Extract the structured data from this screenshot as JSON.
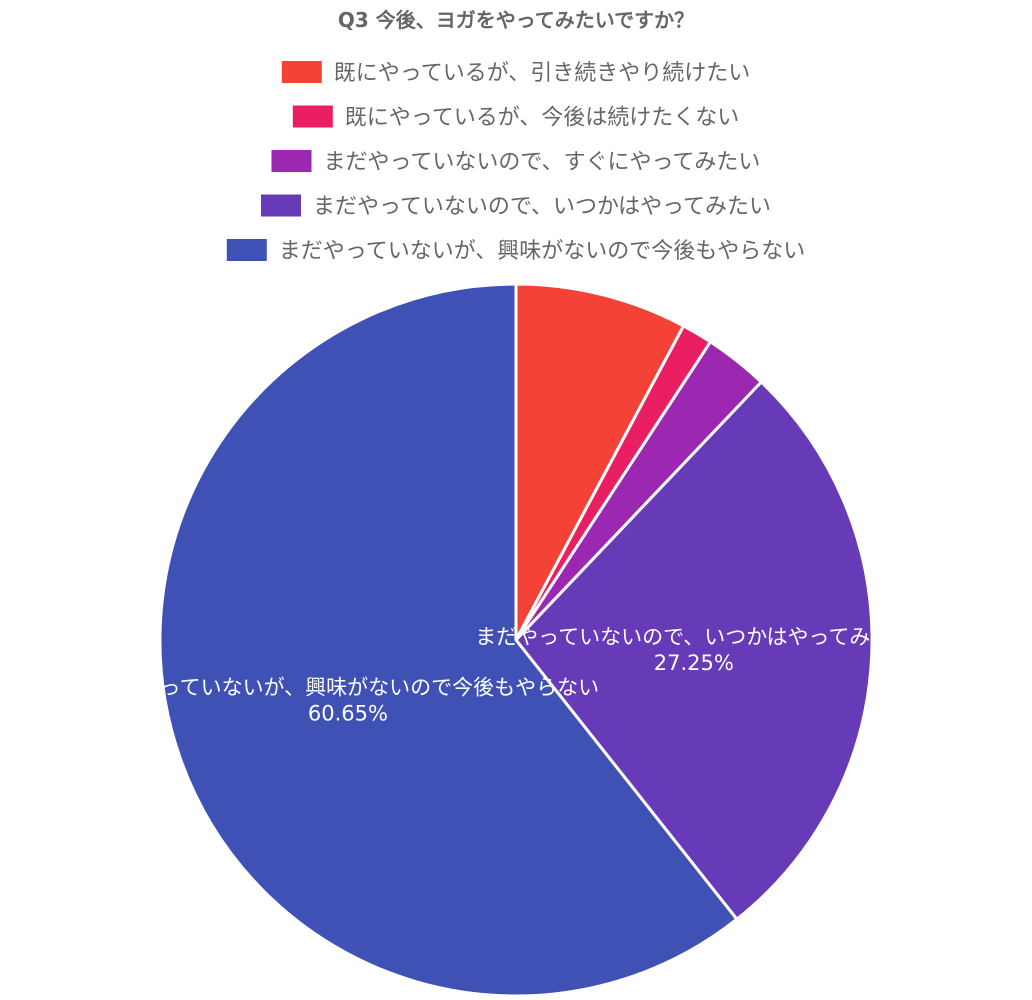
{
  "chart_data": {
    "type": "pie",
    "title": "Q3 今後、ヨガをやってみたいですか？",
    "start_angle_deg": -90,
    "direction": "clockwise",
    "legend_position": "top",
    "slices": [
      {
        "name": "既にやっているが、引き続きやり続けたい",
        "value": 7.8,
        "color": "#f44336",
        "label": "",
        "percent_text": ""
      },
      {
        "name": "既にやっているが、今後は続けたくない",
        "value": 1.4,
        "color": "#e91e63",
        "label": "",
        "percent_text": ""
      },
      {
        "name": "まだやっていないので、すぐにやってみたい",
        "value": 2.9,
        "color": "#9c27b0",
        "label": "",
        "percent_text": ""
      },
      {
        "name": "まだやっていないので、いつかはやってみたい",
        "value": 27.25,
        "color": "#673ab7",
        "label": "まだやっていないので、いつかはやってみたい",
        "percent_text": "27.25%"
      },
      {
        "name": "まだやっていないが、興味がないので今後もやらない",
        "value": 60.65,
        "color": "#3f51b5",
        "label": "まだやっていないが、興味がないので今後もやらない",
        "percent_text": "60.65%"
      }
    ]
  }
}
